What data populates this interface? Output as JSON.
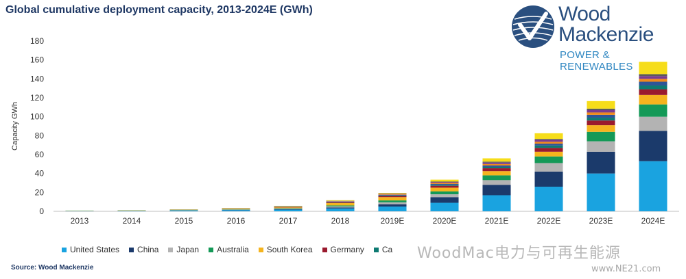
{
  "header": {
    "title": "Global cumulative deployment capacity, 2013-2024E (GWh)",
    "source": "Source: Wood Mackenzie"
  },
  "logo": {
    "line1": "Wood",
    "line2": "Mackenzie",
    "tagline": "POWER & RENEWABLES"
  },
  "watermark": {
    "text": "WoodMac电力与可再生能源",
    "site": "www.NE21.com"
  },
  "colors": {
    "United States": "#1aa3e0",
    "China": "#1b3a6b",
    "Japan": "#b3b3b3",
    "Australia": "#149957",
    "South Korea": "#f5b41e",
    "Germany": "#9a1a2e",
    "Canada": "#0e7a72",
    "United Kingdom": "#7a3c8e",
    "Rest of world": "#f6dd1a",
    "other1": "#2f5597",
    "other2": "#f08a1b",
    "other3": "#c55a11",
    "other4": "#5a5a5a",
    "other5": "#2e75b6"
  },
  "chart_data": {
    "type": "bar",
    "stacked": true,
    "title": "Global cumulative deployment capacity, 2013-2024E (GWh)",
    "ylabel": "Capacity GWh",
    "xlabel": "",
    "ylim": [
      0,
      180
    ],
    "yticks": [
      0,
      20,
      40,
      60,
      80,
      100,
      120,
      140,
      160,
      180
    ],
    "grid": false,
    "legend_position": "bottom",
    "categories": [
      "2013",
      "2014",
      "2015",
      "2016",
      "2017",
      "2018",
      "2019E",
      "2020E",
      "2021E",
      "2022E",
      "2023E",
      "2024E"
    ],
    "series": [
      {
        "name": "United States",
        "color_key": "United States",
        "values": [
          0.3,
          0.5,
          0.8,
          1.2,
          1.8,
          3.0,
          5.0,
          9.0,
          17.0,
          26.0,
          40.0,
          53.0
        ]
      },
      {
        "name": "China",
        "color_key": "China",
        "values": [
          0.1,
          0.1,
          0.2,
          0.3,
          0.5,
          1.0,
          2.5,
          6.0,
          11.0,
          16.0,
          23.0,
          32.0
        ]
      },
      {
        "name": "Japan",
        "color_key": "Japan",
        "values": [
          0.1,
          0.1,
          0.2,
          0.3,
          0.5,
          1.2,
          2.0,
          3.0,
          5.0,
          9.0,
          11.0,
          15.0
        ]
      },
      {
        "name": "Australia",
        "color_key": "Australia",
        "values": [
          0.1,
          0.1,
          0.2,
          0.3,
          0.5,
          1.0,
          2.0,
          3.0,
          5.0,
          7.0,
          10.0,
          13.0
        ]
      },
      {
        "name": "South Korea",
        "color_key": "South Korea",
        "values": [
          0.1,
          0.1,
          0.2,
          0.4,
          0.8,
          2.5,
          3.5,
          4.0,
          4.5,
          5.0,
          7.0,
          10.0
        ]
      },
      {
        "name": "Germany",
        "color_key": "Germany",
        "values": [
          0.0,
          0.1,
          0.1,
          0.2,
          0.4,
          0.8,
          1.2,
          2.0,
          3.0,
          4.0,
          5.0,
          6.0
        ]
      },
      {
        "name": "Ca",
        "color_key": "Canada",
        "values": [
          0.0,
          0.0,
          0.1,
          0.1,
          0.2,
          0.4,
          0.6,
          1.0,
          1.5,
          2.5,
          3.0,
          4.0
        ]
      },
      {
        "name": "",
        "color_key": "other1",
        "values": [
          0.0,
          0.0,
          0.1,
          0.1,
          0.2,
          0.4,
          0.6,
          1.0,
          1.5,
          2.0,
          3.0,
          4.0
        ]
      },
      {
        "name": "",
        "color_key": "other2",
        "values": [
          0.0,
          0.0,
          0.0,
          0.1,
          0.2,
          0.3,
          0.5,
          1.0,
          1.5,
          2.0,
          2.5,
          3.0
        ]
      },
      {
        "name": "",
        "color_key": "United Kingdom",
        "values": [
          0.0,
          0.0,
          0.0,
          0.1,
          0.2,
          0.3,
          0.5,
          1.0,
          1.5,
          2.0,
          2.5,
          3.0
        ]
      },
      {
        "name": "",
        "color_key": "other4",
        "values": [
          0.0,
          0.0,
          0.0,
          0.1,
          0.1,
          0.2,
          0.3,
          0.5,
          1.0,
          1.0,
          1.5,
          2.0
        ]
      },
      {
        "name": "",
        "color_key": "Rest of world",
        "values": [
          0.1,
          0.2,
          0.2,
          0.3,
          0.4,
          0.6,
          0.8,
          2.0,
          3.5,
          6.0,
          8.0,
          13.0
        ]
      }
    ]
  },
  "legend_items": [
    {
      "label": "United States",
      "color_key": "United States"
    },
    {
      "label": "China",
      "color_key": "China"
    },
    {
      "label": "Japan",
      "color_key": "Japan"
    },
    {
      "label": "Australia",
      "color_key": "Australia"
    },
    {
      "label": "South Korea",
      "color_key": "South Korea"
    },
    {
      "label": "Germany",
      "color_key": "Germany"
    },
    {
      "label": "Ca",
      "color_key": "Canada"
    }
  ]
}
